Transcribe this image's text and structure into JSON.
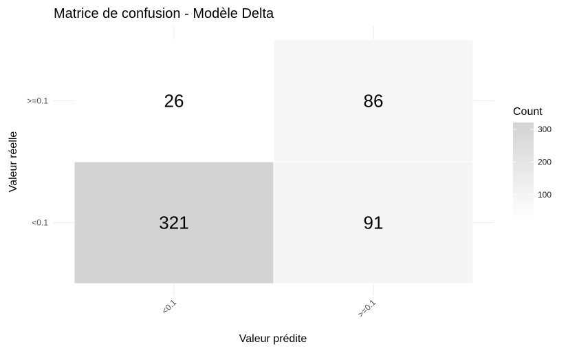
{
  "chart_data": {
    "type": "heatmap",
    "title": "Matrice de confusion - Modèle Delta",
    "xlabel": "Valeur prédite",
    "ylabel": "Valeur réelle",
    "x_categories": [
      "<0.1",
      ">=0.1"
    ],
    "y_categories": [
      "<0.1",
      ">=0.1"
    ],
    "cells": [
      {
        "x": "<0.1",
        "y": ">=0.1",
        "value": 26
      },
      {
        "x": ">=0.1",
        "y": ">=0.1",
        "value": 86
      },
      {
        "x": "<0.1",
        "y": "<0.1",
        "value": 321
      },
      {
        "x": ">=0.1",
        "y": "<0.1",
        "value": 91
      }
    ],
    "legend": {
      "title": "Count",
      "ticks": [
        100,
        200,
        300
      ],
      "range": [
        26,
        321
      ],
      "color_low": "#ffffff",
      "color_high": "#d3d3d3",
      "placement": "right"
    },
    "grid": true
  }
}
